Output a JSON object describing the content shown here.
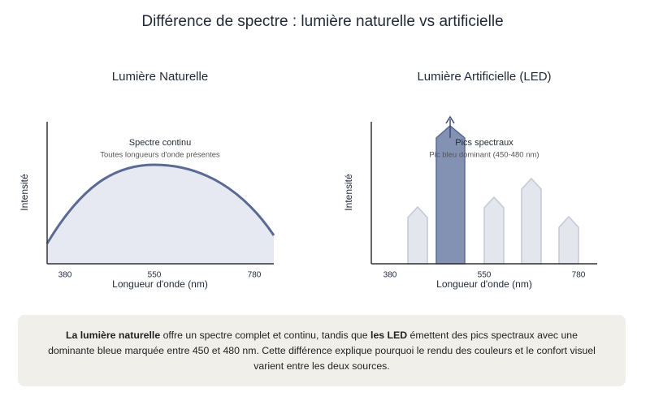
{
  "title": "Différence de spectre : lumière naturelle vs artificielle",
  "panels": [
    {
      "title": "Lumière Naturelle",
      "y_label": "Intensité",
      "x_label": "Longueur d'onde (nm)",
      "x_ticks": [
        "380",
        "550",
        "780"
      ],
      "annotation": {
        "title": "Spectre continu",
        "subtitle": "Toutes longueurs d'onde présentes"
      }
    },
    {
      "title": "Lumière Artificielle (LED)",
      "y_label": "Intensité",
      "x_label": "Longueur d'onde (nm)",
      "x_ticks": [
        "380",
        "550",
        "780"
      ],
      "annotation": {
        "title": "Pics spectraux",
        "subtitle": "Pic bleu dominant (450-480 nm)"
      }
    }
  ],
  "caption": {
    "segments": [
      "La lumière naturelle",
      " offre un spectre complet et continu, tandis que ",
      "les LED",
      " émettent des pics spectraux avec une dominante bleue marquée entre 450 et 480 nm. Cette différence explique pourquoi le rendu des couleurs et le confort visuel varient entre les deux sources."
    ]
  }
}
